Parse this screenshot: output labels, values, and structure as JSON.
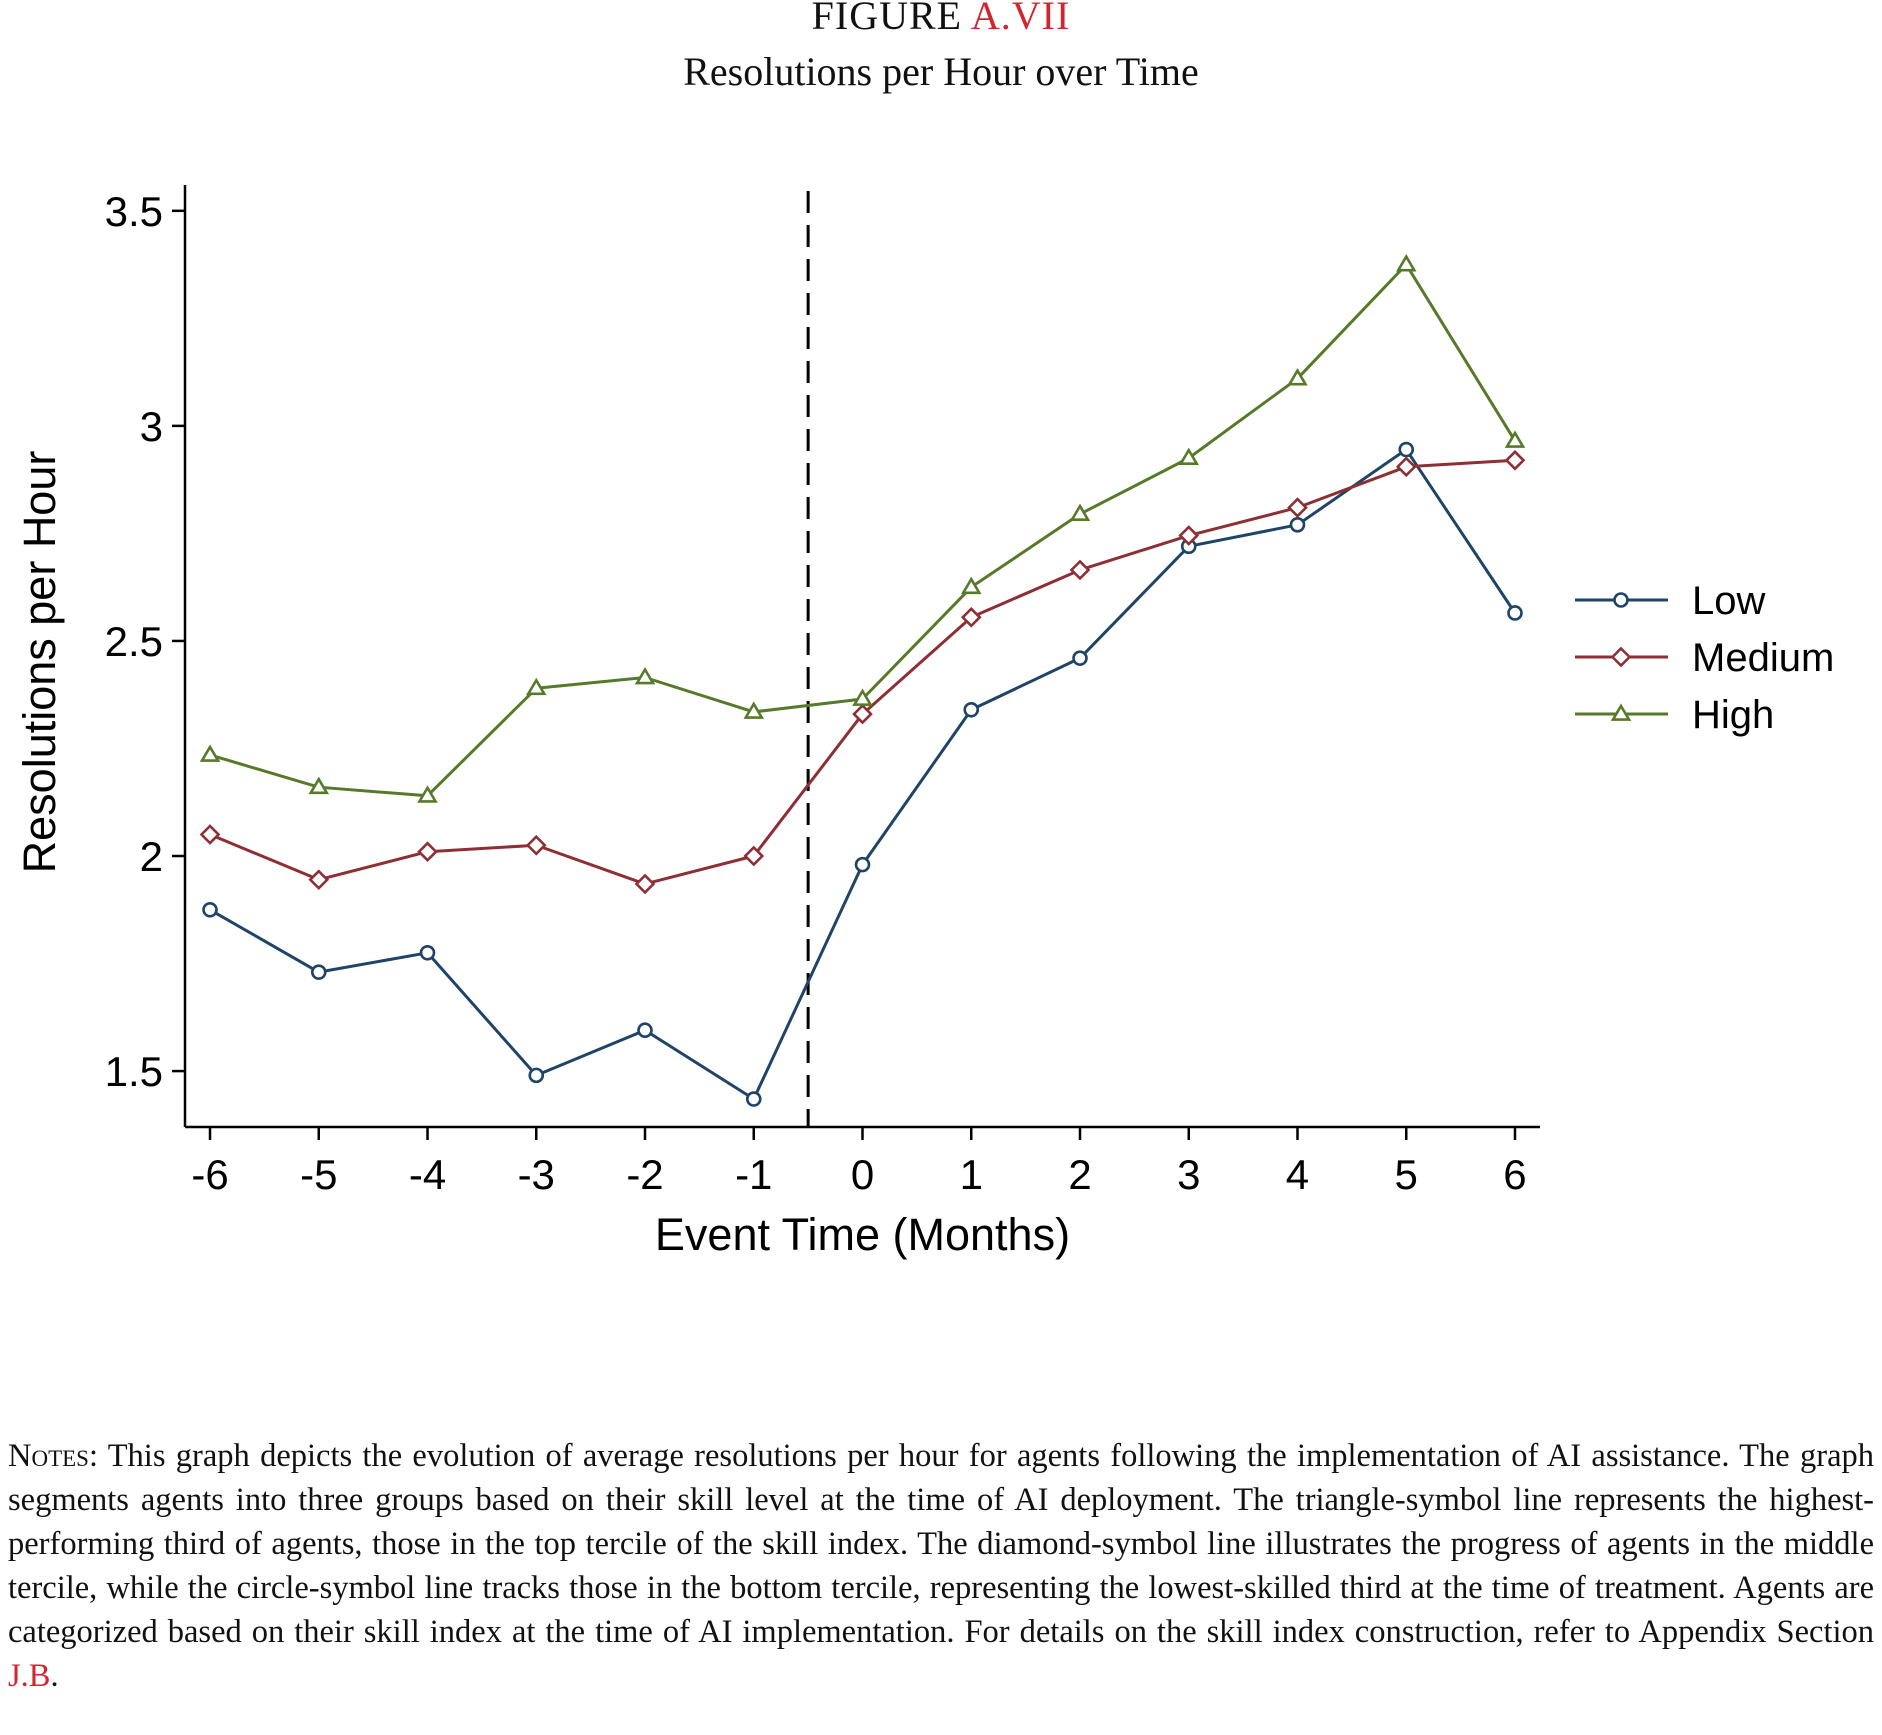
{
  "figure": {
    "label_prefix": "FIGURE",
    "label_ref": "A.VII",
    "title": "Resolutions per Hour over Time"
  },
  "chart_data": {
    "type": "line",
    "title": "Resolutions per Hour over Time",
    "xlabel": "Event Time (Months)",
    "ylabel": "Resolutions per Hour",
    "x": [
      -6,
      -5,
      -4,
      -3,
      -2,
      -1,
      0,
      1,
      2,
      3,
      4,
      5,
      6
    ],
    "x_tick_labels": [
      "-6",
      "-5",
      "-4",
      "-3",
      "-2",
      "-1",
      "0",
      "1",
      "2",
      "3",
      "4",
      "5",
      "6"
    ],
    "y_ticks": [
      1.5,
      2,
      2.5,
      3,
      3.5
    ],
    "y_tick_labels": [
      "1.5",
      "2",
      "2.5",
      "3",
      "3.5"
    ],
    "ylim": [
      1.37,
      3.56
    ],
    "xlim": [
      -6.23,
      6.23
    ],
    "vline_x": -0.5,
    "vline_style": "dashed",
    "grid": false,
    "legend_position": "right",
    "series": [
      {
        "name": "Low",
        "marker": "circle",
        "color": "#1f4468",
        "values": [
          1.875,
          1.73,
          1.775,
          1.49,
          1.595,
          1.435,
          1.98,
          2.34,
          2.46,
          2.72,
          2.77,
          2.945,
          2.565
        ]
      },
      {
        "name": "Medium",
        "marker": "diamond",
        "color": "#8e2f36",
        "values": [
          2.05,
          1.945,
          2.01,
          2.025,
          1.935,
          2.0,
          2.33,
          2.555,
          2.665,
          2.745,
          2.81,
          2.905,
          2.92
        ]
      },
      {
        "name": "High",
        "marker": "triangle",
        "color": "#577a2a",
        "values": [
          2.235,
          2.16,
          2.14,
          2.39,
          2.415,
          2.335,
          2.365,
          2.625,
          2.795,
          2.925,
          3.11,
          3.375,
          2.965
        ]
      }
    ]
  },
  "notes": {
    "lead": "Notes:",
    "body": " This graph depicts the evolution of average resolutions per hour for agents following the implementation of AI assistance. The graph segments agents into three groups based on their skill level at the time of AI deployment. The triangle-symbol line represents the highest-performing third of agents, those in the top tercile of the skill index. The diamond-symbol line illustrates the progress of agents in the middle tercile, while the circle-symbol line tracks those in the bottom tercile, representing the lowest-skilled third at the time of treatment. Agents are categorized based on their skill index at the time of AI implementation. For details on the skill index construction, refer to Appendix Section ",
    "ref": "J.B",
    "end": "."
  }
}
